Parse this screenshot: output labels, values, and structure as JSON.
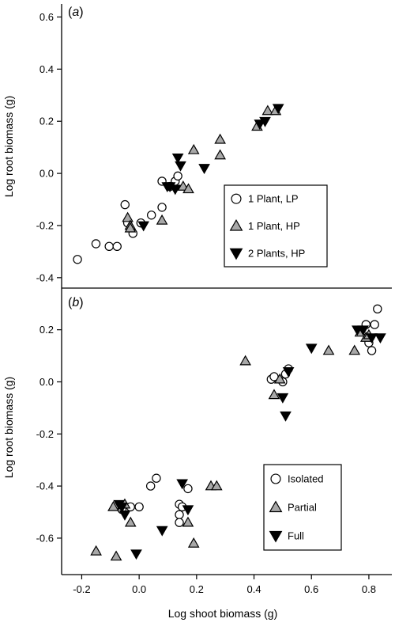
{
  "colors": {
    "open_fill": "#ffffff",
    "gray_fill": "#a8a8a8",
    "black_fill": "#000000",
    "stroke": "#000000"
  },
  "chart_data": [
    {
      "type": "scatter",
      "panel_label": "(a)",
      "xlabel": "",
      "ylabel": "Log root biomass (g)",
      "xlim": [
        -0.35,
        0.9
      ],
      "ylim": [
        -0.44,
        0.65
      ],
      "xticks": [],
      "yticks": [
        -0.4,
        -0.2,
        0.0,
        0.2,
        0.4,
        0.6
      ],
      "ytick_labels": [
        "-0.4",
        "-0.2",
        "0.0",
        "0.2",
        "0.4",
        "0.6"
      ],
      "legend_position": "center-right",
      "series": [
        {
          "name": "1 Plant, LP",
          "marker": "circle",
          "fill": "white",
          "points": [
            [
              -0.29,
              -0.33
            ],
            [
              -0.22,
              -0.27
            ],
            [
              -0.17,
              -0.28
            ],
            [
              -0.14,
              -0.28
            ],
            [
              -0.11,
              -0.12
            ],
            [
              -0.1,
              -0.19
            ],
            [
              -0.08,
              -0.23
            ],
            [
              -0.05,
              -0.19
            ],
            [
              -0.01,
              -0.16
            ],
            [
              0.03,
              -0.03
            ],
            [
              0.03,
              -0.13
            ],
            [
              0.06,
              -0.05
            ],
            [
              0.08,
              -0.03
            ],
            [
              0.09,
              -0.01
            ]
          ]
        },
        {
          "name": "1 Plant, HP",
          "marker": "triangle-up",
          "fill": "gray",
          "points": [
            [
              -0.1,
              -0.17
            ],
            [
              -0.09,
              -0.2
            ],
            [
              -0.09,
              -0.21
            ],
            [
              0.03,
              -0.18
            ],
            [
              0.11,
              -0.05
            ],
            [
              0.13,
              -0.06
            ],
            [
              0.15,
              0.09
            ],
            [
              0.25,
              0.13
            ],
            [
              0.25,
              0.07
            ],
            [
              0.39,
              0.18
            ],
            [
              0.43,
              0.24
            ],
            [
              0.46,
              0.24
            ]
          ]
        },
        {
          "name": "2 Plants, HP",
          "marker": "triangle-down",
          "fill": "black",
          "points": [
            [
              -0.04,
              -0.2
            ],
            [
              0.05,
              -0.05
            ],
            [
              0.06,
              -0.05
            ],
            [
              0.08,
              -0.06
            ],
            [
              0.09,
              0.06
            ],
            [
              0.1,
              0.03
            ],
            [
              0.19,
              0.02
            ],
            [
              0.4,
              0.19
            ],
            [
              0.42,
              0.2
            ],
            [
              0.47,
              0.25
            ]
          ]
        }
      ]
    },
    {
      "type": "scatter",
      "panel_label": "(b)",
      "xlabel": "Log shoot biomass (g)",
      "ylabel": "Log root biomass (g)",
      "xlim": [
        -0.27,
        0.88
      ],
      "ylim": [
        -0.74,
        0.36
      ],
      "xticks": [
        -0.2,
        0.0,
        0.2,
        0.4,
        0.6,
        0.8
      ],
      "xtick_labels": [
        "-0.2",
        "0.0",
        "0.2",
        "0.4",
        "0.6",
        "0.8"
      ],
      "yticks": [
        -0.6,
        -0.4,
        -0.2,
        0.0,
        0.2
      ],
      "ytick_labels": [
        "-0.6",
        "-0.4",
        "-0.2",
        "0.0",
        "0.2"
      ],
      "legend_position": "bottom-center",
      "series": [
        {
          "name": "Isolated",
          "marker": "circle",
          "fill": "white",
          "points": [
            [
              -0.06,
              -0.49
            ],
            [
              -0.03,
              -0.48
            ],
            [
              0.0,
              -0.48
            ],
            [
              0.04,
              -0.4
            ],
            [
              0.06,
              -0.37
            ],
            [
              0.14,
              -0.47
            ],
            [
              0.14,
              -0.51
            ],
            [
              0.14,
              -0.54
            ],
            [
              0.15,
              -0.48
            ],
            [
              0.17,
              -0.41
            ],
            [
              0.46,
              0.01
            ],
            [
              0.47,
              0.02
            ],
            [
              0.5,
              0.0
            ],
            [
              0.51,
              0.03
            ],
            [
              0.52,
              0.05
            ],
            [
              0.79,
              0.22
            ],
            [
              0.8,
              0.15
            ],
            [
              0.81,
              0.12
            ],
            [
              0.82,
              0.22
            ],
            [
              0.83,
              0.28
            ]
          ]
        },
        {
          "name": "Partial",
          "marker": "triangle-up",
          "fill": "gray",
          "points": [
            [
              -0.15,
              -0.65
            ],
            [
              -0.09,
              -0.48
            ],
            [
              -0.08,
              -0.67
            ],
            [
              -0.05,
              -0.47
            ],
            [
              -0.03,
              -0.54
            ],
            [
              0.17,
              -0.54
            ],
            [
              0.19,
              -0.62
            ],
            [
              0.25,
              -0.4
            ],
            [
              0.27,
              -0.4
            ],
            [
              0.37,
              0.08
            ],
            [
              0.47,
              -0.05
            ],
            [
              0.49,
              0.01
            ],
            [
              0.66,
              0.12
            ],
            [
              0.75,
              0.12
            ],
            [
              0.77,
              0.19
            ],
            [
              0.79,
              0.17
            ],
            [
              0.8,
              0.18
            ]
          ]
        },
        {
          "name": "Full",
          "marker": "triangle-down",
          "fill": "black",
          "points": [
            [
              -0.07,
              -0.47
            ],
            [
              -0.06,
              -0.48
            ],
            [
              -0.05,
              -0.51
            ],
            [
              -0.01,
              -0.66
            ],
            [
              0.08,
              -0.57
            ],
            [
              0.15,
              -0.39
            ],
            [
              0.17,
              -0.49
            ],
            [
              0.5,
              -0.06
            ],
            [
              0.51,
              -0.13
            ],
            [
              0.52,
              0.04
            ],
            [
              0.6,
              0.13
            ],
            [
              0.76,
              0.2
            ],
            [
              0.78,
              0.2
            ],
            [
              0.81,
              0.17
            ],
            [
              0.84,
              0.17
            ]
          ]
        }
      ]
    }
  ]
}
